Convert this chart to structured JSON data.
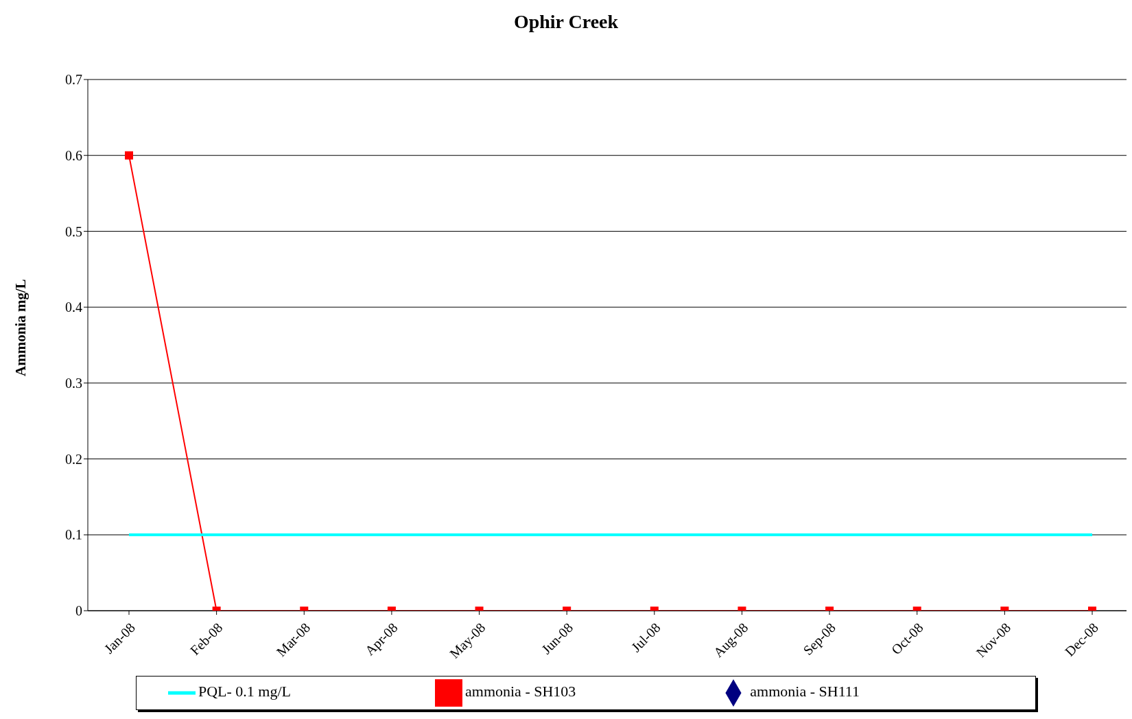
{
  "chart_data": {
    "type": "line",
    "title": "Ophir Creek",
    "ylabel": "Ammonia mg/L",
    "categories": [
      "Jan-08",
      "Feb-08",
      "Mar-08",
      "Apr-08",
      "May-08",
      "Jun-08",
      "Jul-08",
      "Aug-08",
      "Sep-08",
      "Oct-08",
      "Nov-08",
      "Dec-08"
    ],
    "series": [
      {
        "name": "ammonia - SH111",
        "color": "#000080",
        "marker": "diamond",
        "values": [
          null,
          null,
          null,
          null,
          null,
          null,
          null,
          null,
          null,
          null,
          null,
          null
        ]
      },
      {
        "name": "ammonia - SH103",
        "color": "#ff0000",
        "marker": "square",
        "values": [
          0.6,
          0,
          0,
          0,
          0,
          0,
          0,
          0,
          0,
          0,
          0,
          0
        ]
      },
      {
        "name": "PQL- 0.1 mg/L",
        "color": "#00ffff",
        "marker": "none",
        "values": [
          0.1,
          0.1,
          0.1,
          0.1,
          0.1,
          0.1,
          0.1,
          0.1,
          0.1,
          0.1,
          0.1,
          0.1
        ]
      }
    ],
    "ylim": [
      0,
      0.7
    ],
    "yticks": [
      0,
      0.1,
      0.2,
      0.3,
      0.4,
      0.5,
      0.6,
      0.7
    ],
    "grid": "y",
    "legend": "bottom"
  }
}
